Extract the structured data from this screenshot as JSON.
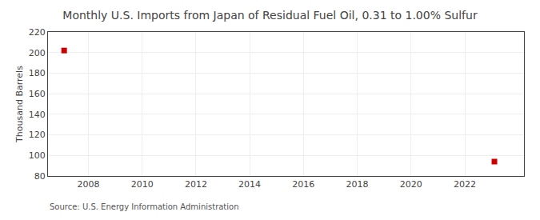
{
  "chart_data": {
    "type": "scatter",
    "title": "Monthly U.S. Imports from Japan of Residual Fuel Oil, 0.31 to 1.00% Sulfur",
    "ylabel": "Thousand Barrels",
    "annotations": [
      "Source: U.S. Energy Information Administration"
    ],
    "x": [
      2007.1,
      2023.1
    ],
    "values": [
      202,
      94
    ],
    "color": "#cc0000",
    "marker": "square",
    "xlim": [
      2006.5,
      2024.2
    ],
    "xticks": [
      2008,
      2010,
      2012,
      2014,
      2016,
      2018,
      2020,
      2022
    ],
    "ylim": [
      80,
      220
    ],
    "yticks": [
      80,
      100,
      120,
      140,
      160,
      180,
      200,
      220
    ],
    "grid": true
  }
}
